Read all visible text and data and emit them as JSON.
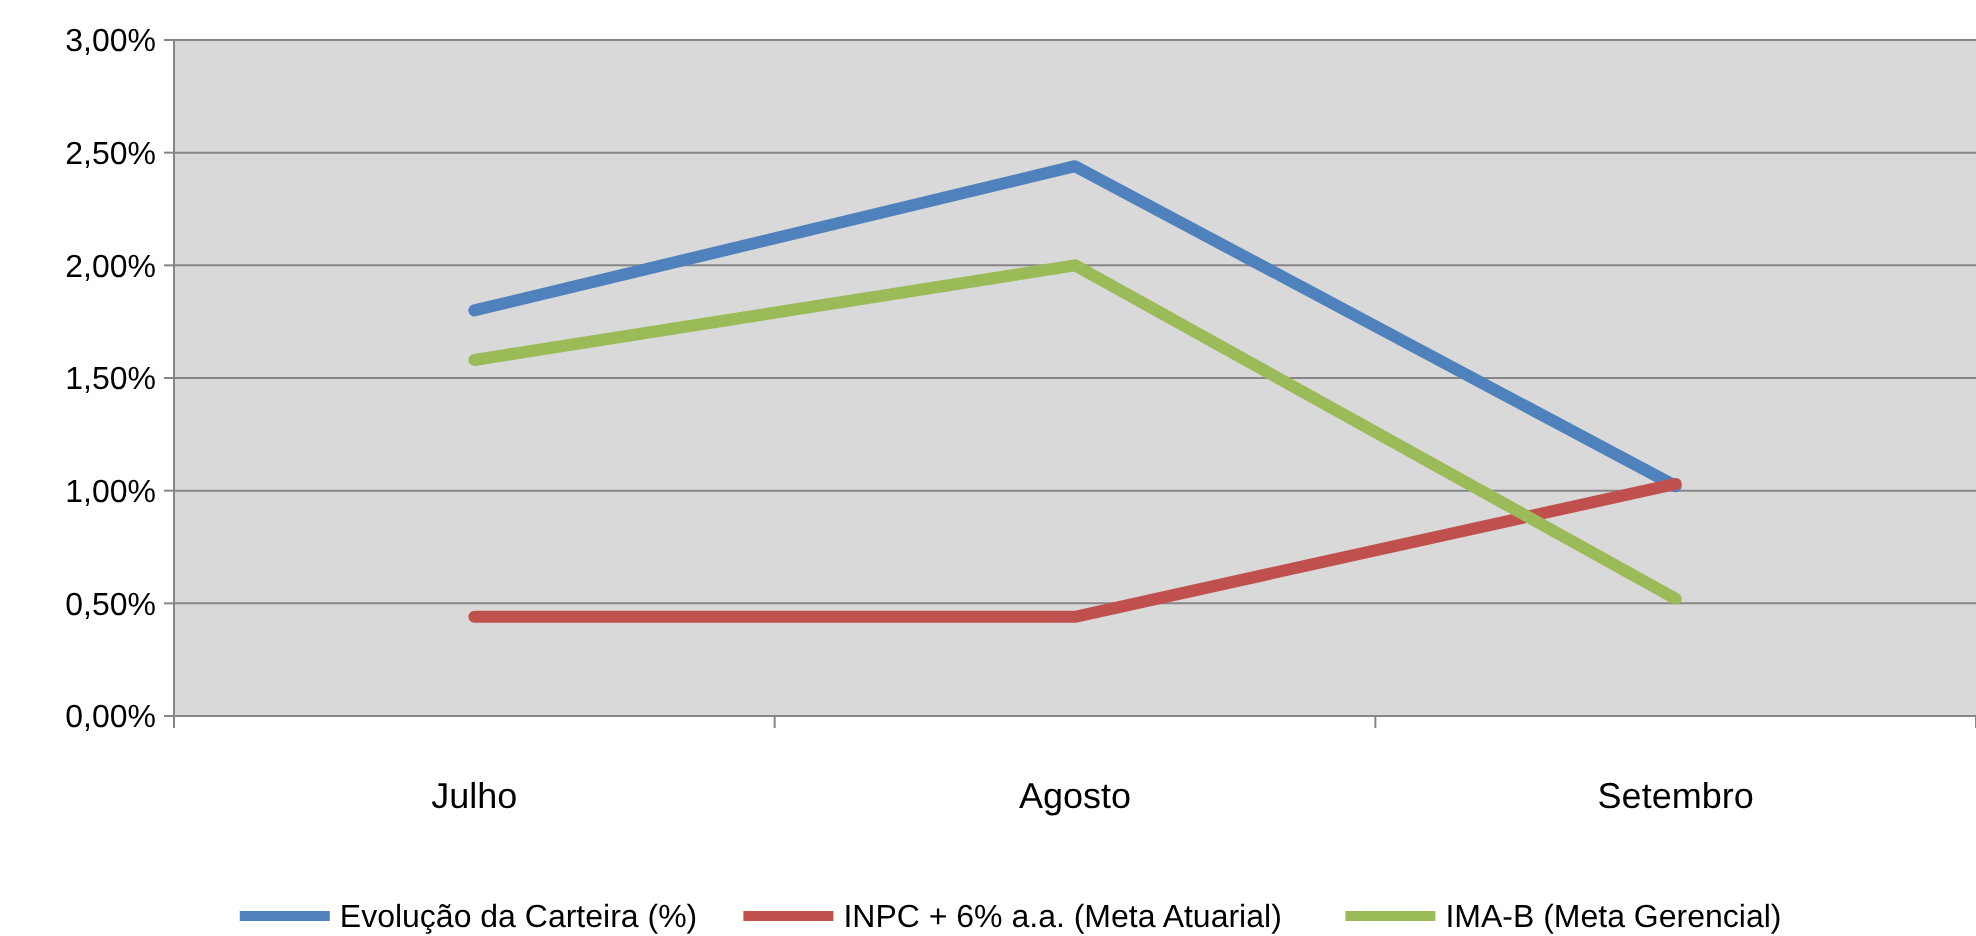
{
  "chart_data": {
    "type": "line",
    "categories": [
      "Julho",
      "Agosto",
      "Setembro"
    ],
    "series": [
      {
        "name": "Evolução da Carteira (%)",
        "color": "#4f81bd",
        "values": [
          1.8,
          2.44,
          1.02
        ]
      },
      {
        "name": "INPC + 6% a.a. (Meta Atuarial)",
        "color": "#c0504d",
        "values": [
          0.44,
          0.44,
          1.03
        ]
      },
      {
        "name": "IMA-B (Meta Gerencial)",
        "color": "#9bbb59",
        "values": [
          1.58,
          2.0,
          0.52
        ]
      }
    ],
    "ylim": [
      0,
      3
    ],
    "yticks": [
      {
        "value": 0,
        "label": "0,00%"
      },
      {
        "value": 0.5,
        "label": "0,50%"
      },
      {
        "value": 1,
        "label": "1,00%"
      },
      {
        "value": 1.5,
        "label": "1,50%"
      },
      {
        "value": 2,
        "label": "2,00%"
      },
      {
        "value": 2.5,
        "label": "2,50%"
      },
      {
        "value": 3,
        "label": "3,00%"
      }
    ],
    "grid": "y",
    "legend": "bottom",
    "marker": "none",
    "line_style": "solid"
  }
}
